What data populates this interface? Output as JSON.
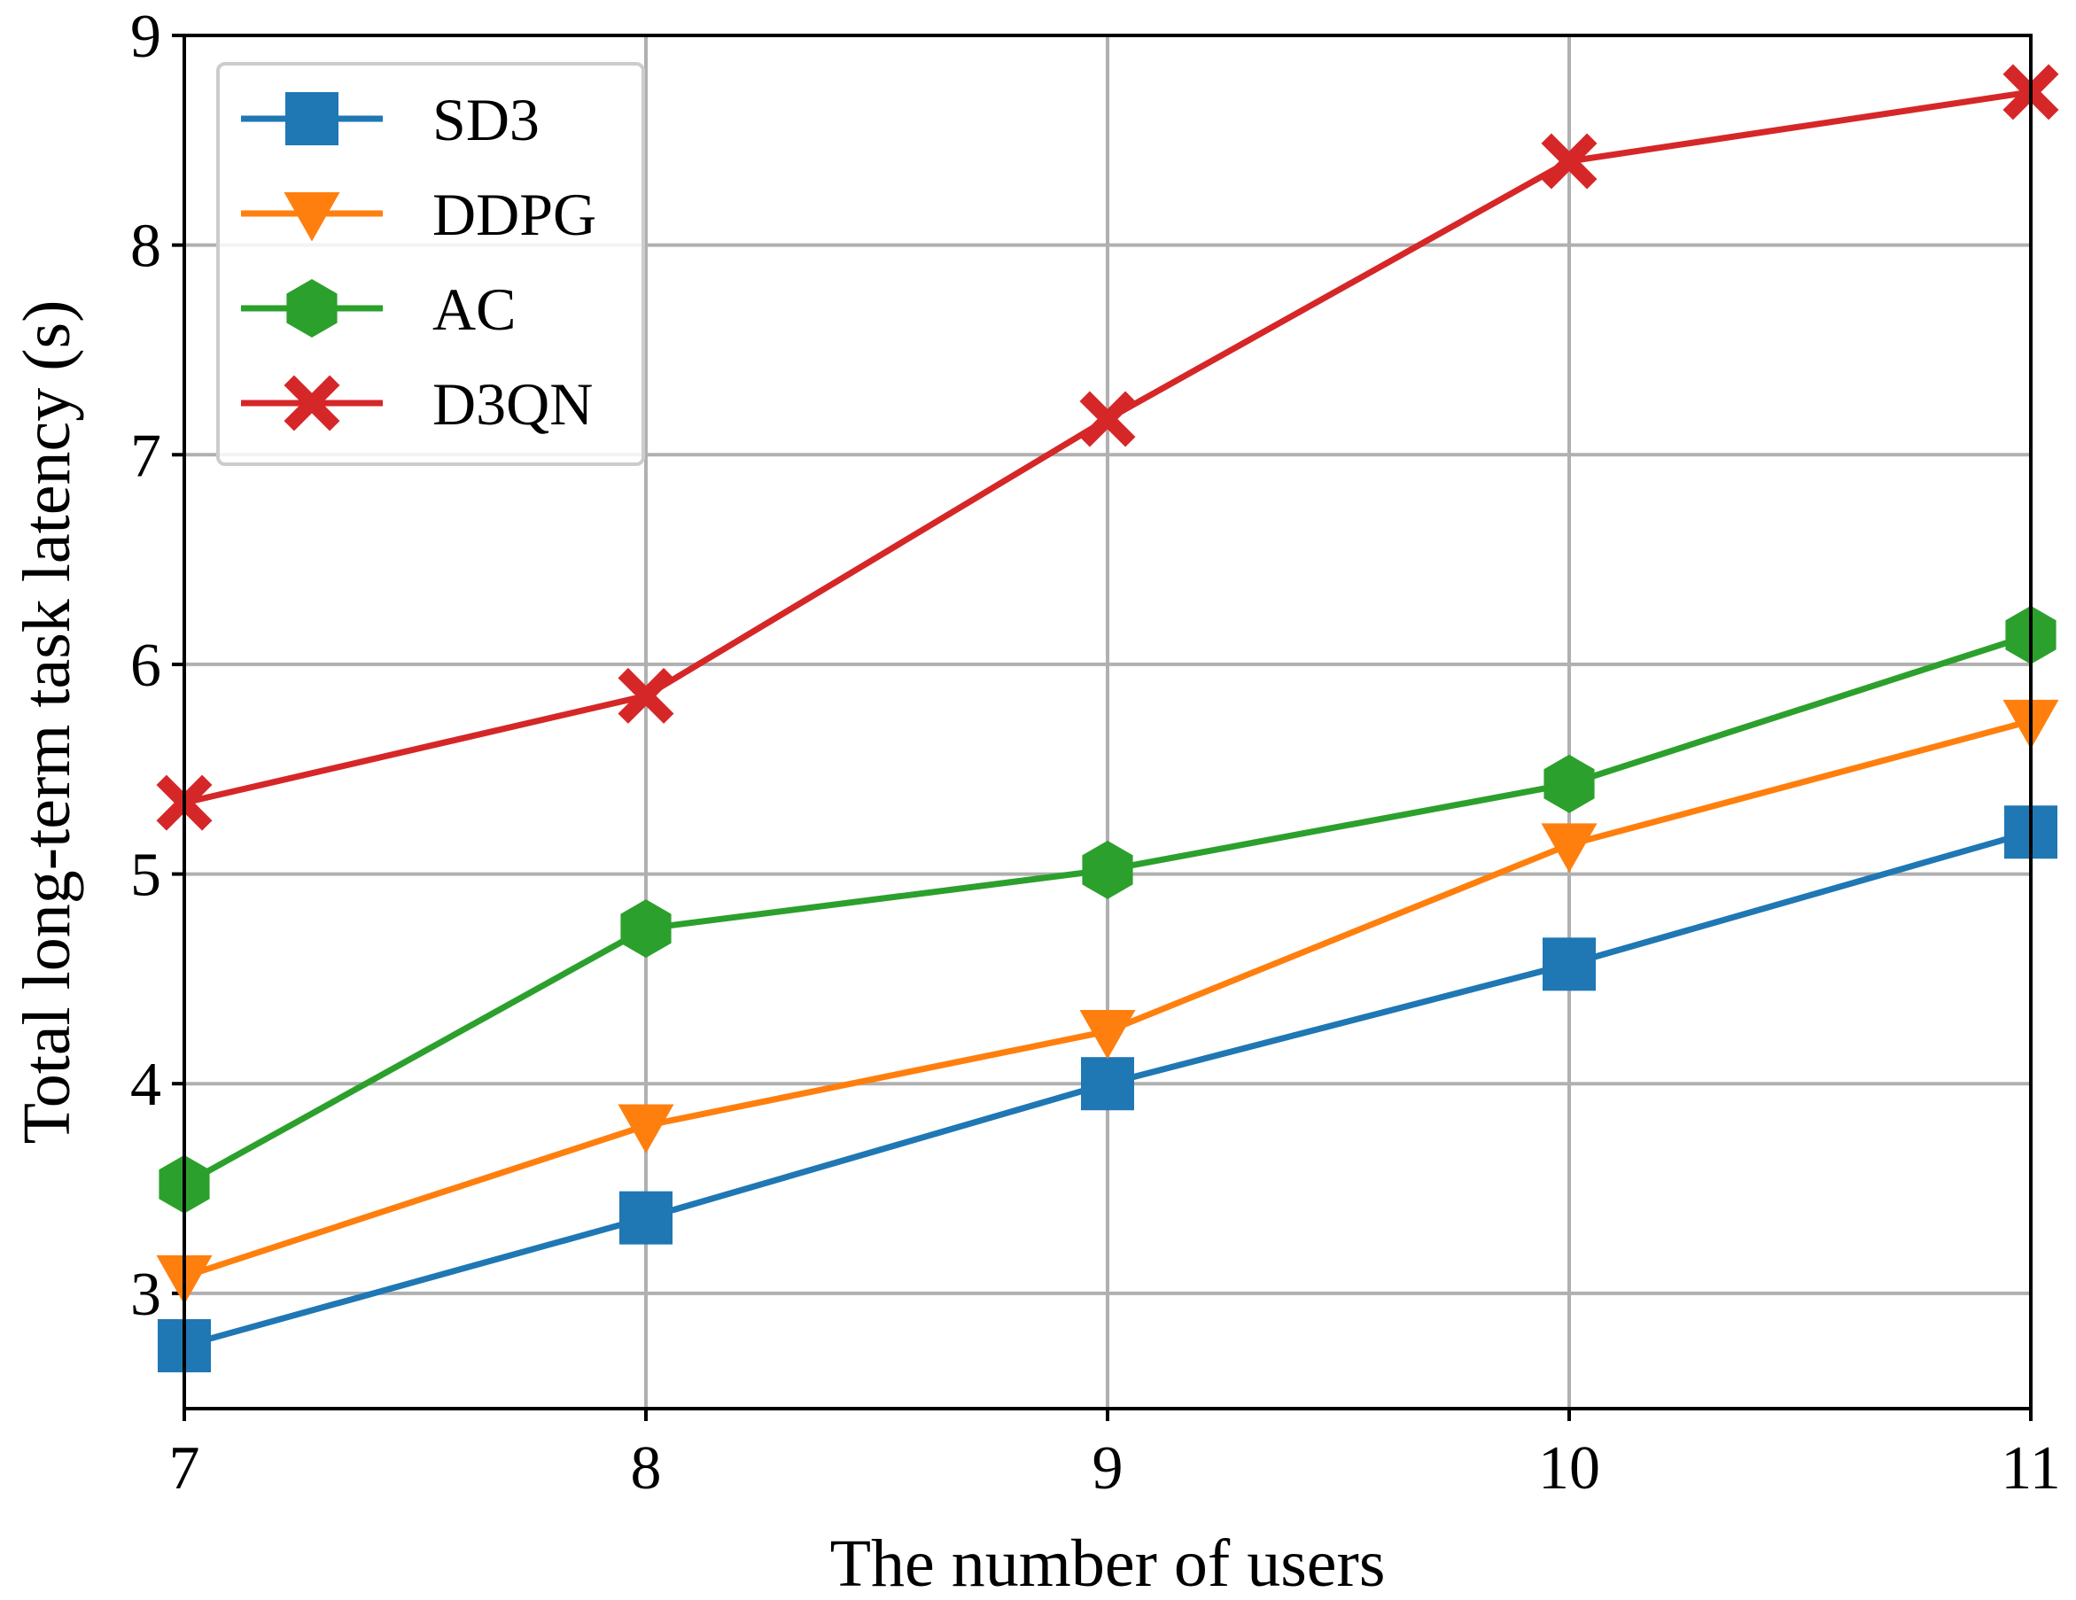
{
  "chart_data": {
    "type": "line",
    "title": "",
    "xlabel": "The number of users",
    "ylabel": "Total long-term task latency (s)",
    "x": [
      7,
      8,
      9,
      10,
      11
    ],
    "xlim": [
      7,
      11
    ],
    "ylim": [
      2.45,
      9
    ],
    "xticks": [
      "7",
      "8",
      "9",
      "10",
      "11"
    ],
    "yticks": [
      "3",
      "4",
      "5",
      "6",
      "7",
      "8",
      "9"
    ],
    "grid": true,
    "legend_position": "top-left",
    "series": [
      {
        "name": "SD3",
        "values": [
          2.75,
          3.36,
          4.0,
          4.57,
          5.2
        ],
        "color": "#1f77b4",
        "marker": "square"
      },
      {
        "name": "DDPG",
        "values": [
          3.08,
          3.8,
          4.25,
          5.14,
          5.73
        ],
        "color": "#ff7f0e",
        "marker": "triangle-down"
      },
      {
        "name": "AC",
        "values": [
          3.52,
          4.74,
          5.02,
          5.43,
          6.14
        ],
        "color": "#2ca02c",
        "marker": "hexagon"
      },
      {
        "name": "D3QN",
        "values": [
          5.34,
          5.85,
          7.17,
          8.4,
          8.73
        ],
        "color": "#d62728",
        "marker": "x-filled"
      }
    ]
  }
}
